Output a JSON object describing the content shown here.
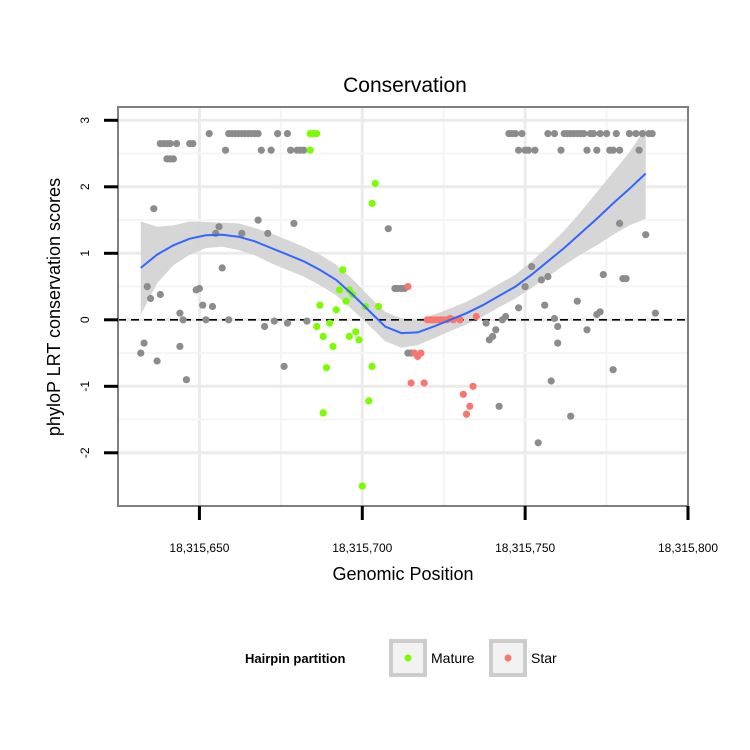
{
  "chart_data": {
    "type": "scatter",
    "title": "Conservation",
    "xlabel": "Genomic Position",
    "ylabel": "phyloP LRT conservation scores",
    "xlim": [
      18315625,
      18315800
    ],
    "ylim": [
      -2.8,
      3.2
    ],
    "x_ticks": [
      18315650,
      18315700,
      18315750,
      18315800
    ],
    "x_tick_labels": [
      "18,315,650",
      "18,315,700",
      "18,315,750",
      "18,315,800"
    ],
    "y_ticks": [
      -2,
      -1,
      0,
      1,
      2,
      3
    ],
    "y_tick_labels": [
      "-2",
      "-1",
      "0",
      "1",
      "2",
      "3"
    ],
    "grid": true,
    "reference_line": {
      "y": 0,
      "style": "dashed"
    },
    "legend": {
      "title": "Hairpin partition",
      "placement": "bottom",
      "entries": [
        {
          "label": "Mature",
          "color": "#7cfc00"
        },
        {
          "label": "Star",
          "color": "#f8766d"
        }
      ]
    },
    "colors": {
      "other": "#8c8c8c",
      "Mature": "#7cfc00",
      "Star": "#f8766d",
      "smooth": "#3366ff",
      "band": "#d4d4d4"
    },
    "series": [
      {
        "name": "Other",
        "points": [
          [
            18315632,
            -0.5
          ],
          [
            18315633,
            -0.35
          ],
          [
            18315634,
            0.5
          ],
          [
            18315635,
            0.32
          ],
          [
            18315636,
            1.67
          ],
          [
            18315637,
            -0.62
          ],
          [
            18315638,
            0.38
          ],
          [
            18315638,
            2.65
          ],
          [
            18315639,
            2.65
          ],
          [
            18315640,
            2.65
          ],
          [
            18315641,
            2.65
          ],
          [
            18315640,
            2.42
          ],
          [
            18315641,
            2.42
          ],
          [
            18315642,
            2.42
          ],
          [
            18315643,
            2.65
          ],
          [
            18315644,
            0.1
          ],
          [
            18315644,
            -0.4
          ],
          [
            18315645,
            0.0
          ],
          [
            18315646,
            -0.9
          ],
          [
            18315647,
            2.65
          ],
          [
            18315648,
            2.65
          ],
          [
            18315649,
            0.45
          ],
          [
            18315650,
            0.47
          ],
          [
            18315651,
            0.22
          ],
          [
            18315652,
            0.0
          ],
          [
            18315653,
            2.8
          ],
          [
            18315654,
            0.2
          ],
          [
            18315655,
            1.3
          ],
          [
            18315656,
            1.4
          ],
          [
            18315657,
            0.78
          ],
          [
            18315658,
            2.55
          ],
          [
            18315659,
            2.8
          ],
          [
            18315659,
            0.0
          ],
          [
            18315660,
            2.8
          ],
          [
            18315661,
            2.8
          ],
          [
            18315662,
            2.8
          ],
          [
            18315663,
            1.3
          ],
          [
            18315663,
            2.8
          ],
          [
            18315664,
            2.8
          ],
          [
            18315665,
            2.8
          ],
          [
            18315666,
            2.8
          ],
          [
            18315667,
            2.8
          ],
          [
            18315668,
            1.5
          ],
          [
            18315668,
            2.8
          ],
          [
            18315669,
            2.55
          ],
          [
            18315670,
            -0.1
          ],
          [
            18315671,
            1.3
          ],
          [
            18315672,
            2.55
          ],
          [
            18315673,
            -0.02
          ],
          [
            18315674,
            2.8
          ],
          [
            18315676,
            -0.7
          ],
          [
            18315677,
            2.8
          ],
          [
            18315677,
            -0.05
          ],
          [
            18315678,
            2.55
          ],
          [
            18315679,
            1.45
          ],
          [
            18315680,
            2.55
          ],
          [
            18315681,
            2.55
          ],
          [
            18315682,
            2.55
          ],
          [
            18315683,
            -0.02
          ],
          [
            18315708,
            1.37
          ],
          [
            18315710,
            0.47
          ],
          [
            18315711,
            0.47
          ],
          [
            18315712,
            0.47
          ],
          [
            18315713,
            0.47
          ],
          [
            18315714,
            -0.5
          ],
          [
            18315715,
            -0.5
          ],
          [
            18315738,
            -0.05
          ],
          [
            18315739,
            -0.3
          ],
          [
            18315740,
            -0.25
          ],
          [
            18315741,
            -0.15
          ],
          [
            18315742,
            -1.3
          ],
          [
            18315743,
            0.0
          ],
          [
            18315744,
            0.05
          ],
          [
            18315745,
            2.8
          ],
          [
            18315746,
            2.8
          ],
          [
            18315747,
            2.8
          ],
          [
            18315748,
            2.55
          ],
          [
            18315748,
            0.18
          ],
          [
            18315749,
            2.8
          ],
          [
            18315750,
            2.55
          ],
          [
            18315750,
            0.5
          ],
          [
            18315751,
            2.55
          ],
          [
            18315752,
            0.8
          ],
          [
            18315753,
            2.55
          ],
          [
            18315754,
            -1.85
          ],
          [
            18315755,
            0.6
          ],
          [
            18315756,
            0.22
          ],
          [
            18315757,
            2.8
          ],
          [
            18315757,
            0.65
          ],
          [
            18315758,
            -0.92
          ],
          [
            18315759,
            2.8
          ],
          [
            18315759,
            0.02
          ],
          [
            18315760,
            -0.1
          ],
          [
            18315760,
            -0.35
          ],
          [
            18315761,
            2.55
          ],
          [
            18315762,
            2.8
          ],
          [
            18315763,
            2.8
          ],
          [
            18315764,
            -1.45
          ],
          [
            18315764,
            2.8
          ],
          [
            18315765,
            2.8
          ],
          [
            18315766,
            0.28
          ],
          [
            18315766,
            2.8
          ],
          [
            18315767,
            2.8
          ],
          [
            18315768,
            2.8
          ],
          [
            18315769,
            2.55
          ],
          [
            18315769,
            -0.15
          ],
          [
            18315770,
            2.8
          ],
          [
            18315771,
            2.8
          ],
          [
            18315772,
            2.55
          ],
          [
            18315772,
            0.08
          ],
          [
            18315773,
            0.12
          ],
          [
            18315773,
            2.8
          ],
          [
            18315774,
            0.68
          ],
          [
            18315775,
            2.8
          ],
          [
            18315776,
            2.55
          ],
          [
            18315777,
            2.55
          ],
          [
            18315777,
            -0.75
          ],
          [
            18315778,
            2.8
          ],
          [
            18315779,
            2.55
          ],
          [
            18315779,
            1.45
          ],
          [
            18315780,
            0.62
          ],
          [
            18315781,
            0.62
          ],
          [
            18315782,
            2.8
          ],
          [
            18315784,
            2.8
          ],
          [
            18315785,
            2.55
          ],
          [
            18315786,
            2.8
          ],
          [
            18315787,
            1.28
          ],
          [
            18315788,
            2.8
          ],
          [
            18315789,
            2.8
          ],
          [
            18315790,
            0.1
          ]
        ]
      },
      {
        "name": "Mature",
        "points": [
          [
            18315684,
            2.55
          ],
          [
            18315684,
            2.8
          ],
          [
            18315685,
            2.8
          ],
          [
            18315686,
            2.8
          ],
          [
            18315686,
            -0.1
          ],
          [
            18315687,
            0.22
          ],
          [
            18315688,
            -0.25
          ],
          [
            18315688,
            -1.4
          ],
          [
            18315689,
            -0.72
          ],
          [
            18315690,
            -0.05
          ],
          [
            18315691,
            -0.4
          ],
          [
            18315692,
            0.15
          ],
          [
            18315693,
            0.45
          ],
          [
            18315694,
            0.75
          ],
          [
            18315695,
            0.28
          ],
          [
            18315696,
            0.45
          ],
          [
            18315696,
            -0.25
          ],
          [
            18315697,
            0.38
          ],
          [
            18315698,
            -0.18
          ],
          [
            18315699,
            -0.3
          ],
          [
            18315700,
            -2.5
          ],
          [
            18315701,
            0.2
          ],
          [
            18315702,
            -1.22
          ],
          [
            18315703,
            -0.7
          ],
          [
            18315703,
            1.75
          ],
          [
            18315704,
            2.05
          ],
          [
            18315705,
            0.2
          ]
        ]
      },
      {
        "name": "Star",
        "points": [
          [
            18315714,
            0.5
          ],
          [
            18315715,
            -0.95
          ],
          [
            18315716,
            -0.5
          ],
          [
            18315717,
            -0.55
          ],
          [
            18315718,
            -0.5
          ],
          [
            18315719,
            -0.95
          ],
          [
            18315720,
            0.0
          ],
          [
            18315721,
            0.0
          ],
          [
            18315722,
            0.0
          ],
          [
            18315723,
            0.0
          ],
          [
            18315724,
            0.0
          ],
          [
            18315725,
            0.0
          ],
          [
            18315726,
            0.0
          ],
          [
            18315727,
            0.02
          ],
          [
            18315728,
            0.0
          ],
          [
            18315730,
            0.0
          ],
          [
            18315731,
            -1.12
          ],
          [
            18315732,
            -1.42
          ],
          [
            18315733,
            -1.3
          ],
          [
            18315734,
            -1.0
          ],
          [
            18315735,
            0.05
          ]
        ]
      }
    ],
    "smooth_curve": [
      [
        18315632,
        0.78
      ],
      [
        18315637,
        0.98
      ],
      [
        18315642,
        1.12
      ],
      [
        18315647,
        1.22
      ],
      [
        18315652,
        1.27
      ],
      [
        18315657,
        1.28
      ],
      [
        18315662,
        1.25
      ],
      [
        18315667,
        1.18
      ],
      [
        18315672,
        1.08
      ],
      [
        18315677,
        0.98
      ],
      [
        18315682,
        0.88
      ],
      [
        18315687,
        0.75
      ],
      [
        18315692,
        0.6
      ],
      [
        18315697,
        0.38
      ],
      [
        18315702,
        0.14
      ],
      [
        18315707,
        -0.1
      ],
      [
        18315712,
        -0.2
      ],
      [
        18315717,
        -0.19
      ],
      [
        18315722,
        -0.1
      ],
      [
        18315727,
        0.0
      ],
      [
        18315732,
        0.1
      ],
      [
        18315737,
        0.22
      ],
      [
        18315742,
        0.36
      ],
      [
        18315747,
        0.5
      ],
      [
        18315752,
        0.68
      ],
      [
        18315757,
        0.88
      ],
      [
        18315762,
        1.08
      ],
      [
        18315767,
        1.3
      ],
      [
        18315772,
        1.52
      ],
      [
        18315777,
        1.75
      ],
      [
        18315782,
        1.97
      ],
      [
        18315787,
        2.2
      ]
    ],
    "confidence_band": [
      [
        18315632,
        0.08,
        1.48
      ],
      [
        18315637,
        0.55,
        1.4
      ],
      [
        18315642,
        0.82,
        1.42
      ],
      [
        18315647,
        0.98,
        1.48
      ],
      [
        18315652,
        1.08,
        1.47
      ],
      [
        18315657,
        1.1,
        1.46
      ],
      [
        18315662,
        1.05,
        1.45
      ],
      [
        18315667,
        0.97,
        1.38
      ],
      [
        18315672,
        0.85,
        1.3
      ],
      [
        18315677,
        0.75,
        1.2
      ],
      [
        18315682,
        0.65,
        1.1
      ],
      [
        18315687,
        0.52,
        0.98
      ],
      [
        18315692,
        0.37,
        0.83
      ],
      [
        18315697,
        0.15,
        0.61
      ],
      [
        18315702,
        -0.08,
        0.36
      ],
      [
        18315707,
        -0.32,
        0.12
      ],
      [
        18315712,
        -0.42,
        0.02
      ],
      [
        18315717,
        -0.38,
        0.0
      ],
      [
        18315722,
        -0.28,
        0.08
      ],
      [
        18315727,
        -0.17,
        0.17
      ],
      [
        18315732,
        -0.07,
        0.27
      ],
      [
        18315737,
        0.05,
        0.4
      ],
      [
        18315742,
        0.19,
        0.54
      ],
      [
        18315747,
        0.32,
        0.68
      ],
      [
        18315752,
        0.48,
        0.88
      ],
      [
        18315757,
        0.65,
        1.1
      ],
      [
        18315762,
        0.82,
        1.34
      ],
      [
        18315767,
        0.98,
        1.62
      ],
      [
        18315772,
        1.12,
        1.92
      ],
      [
        18315777,
        1.28,
        2.22
      ],
      [
        18315782,
        1.42,
        2.52
      ],
      [
        18315787,
        1.52,
        2.88
      ]
    ]
  }
}
